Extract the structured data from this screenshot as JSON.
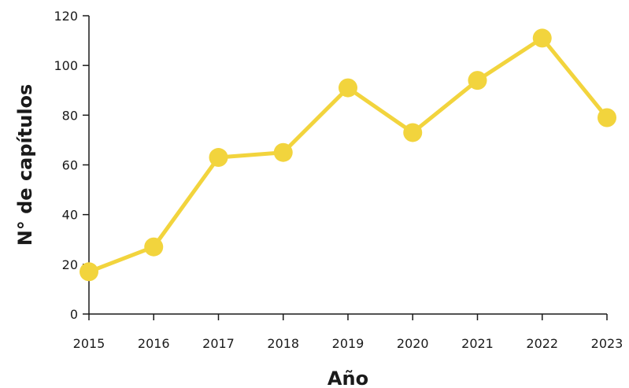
{
  "chart_data": {
    "type": "line",
    "xlabel": "Año",
    "ylabel": "N° de capítulos",
    "ylim": [
      0,
      120
    ],
    "yticks": [
      0,
      20,
      40,
      60,
      80,
      100,
      120
    ],
    "x": [
      "2015",
      "2016",
      "2017",
      "2018",
      "2019",
      "2020",
      "2021",
      "2022",
      "2023"
    ],
    "series": [
      {
        "values": [
          17,
          27,
          63,
          65,
          91,
          73,
          94,
          111,
          79
        ]
      }
    ],
    "grid": false,
    "line_color": "#f2d43d",
    "marker": "circle"
  }
}
